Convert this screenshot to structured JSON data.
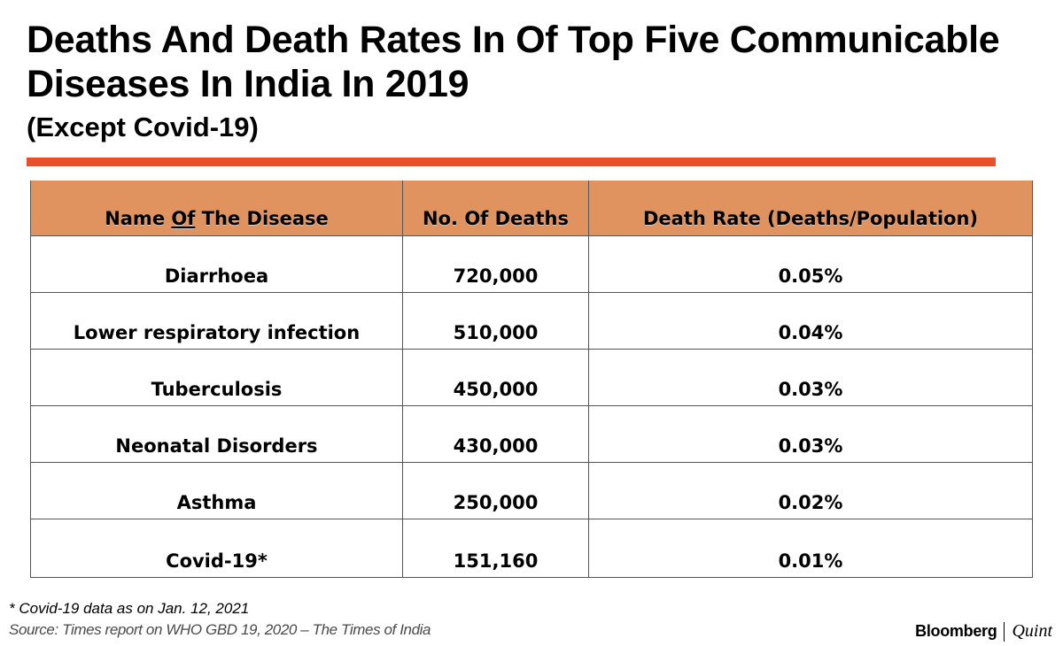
{
  "title": "Deaths And Death Rates In Of Top Five Communicable Diseases In India In 2019",
  "subtitle": "(Except Covid-19)",
  "colors": {
    "accent_rule": "#e8502a",
    "header_fill": "#e0925f"
  },
  "chart_data": {
    "type": "table",
    "columns": {
      "disease_prefix": "Name ",
      "disease_underlined": "Of",
      "disease_suffix": " The Disease",
      "deaths": "No. Of Deaths",
      "rate": "Death Rate (Deaths/Population)"
    },
    "rows": [
      {
        "disease": "Diarrhoea",
        "deaths": "720,000",
        "rate": "0.05%"
      },
      {
        "disease": "Lower respiratory infection",
        "deaths": "510,000",
        "rate": "0.04%"
      },
      {
        "disease": "Tuberculosis",
        "deaths": "450,000",
        "rate": "0.03%"
      },
      {
        "disease": "Neonatal Disorders",
        "deaths": "430,000",
        "rate": "0.03%"
      },
      {
        "disease": "Asthma",
        "deaths": "250,000",
        "rate": "0.02%"
      },
      {
        "disease": "Covid-19*",
        "deaths": "151,160",
        "rate": "0.01%"
      }
    ]
  },
  "footnote": "* Covid-19 data as on Jan. 12, 2021",
  "source": "Source: Times report on WHO GBD 19, 2020 – The Times of India",
  "brand": {
    "primary": "Bloomberg",
    "secondary": "Quint"
  }
}
